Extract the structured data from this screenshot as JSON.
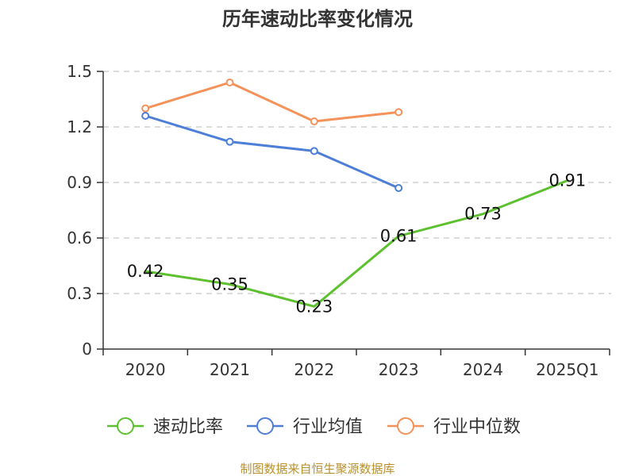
{
  "chart_data": {
    "type": "line",
    "title": "历年速动比率变化情况",
    "categories": [
      "2020",
      "2021",
      "2022",
      "2023",
      "2024",
      "2025Q1"
    ],
    "ylim": [
      0,
      1.5
    ],
    "yticks": [
      "0",
      "0.3",
      "0.6",
      "0.9",
      "1.2",
      "1.5"
    ],
    "grid": true,
    "legend_position": "bottom",
    "series": [
      {
        "name": "速动比率",
        "color": "#5dc02f",
        "values": [
          0.42,
          0.35,
          0.23,
          0.61,
          0.73,
          0.91
        ],
        "labels": [
          "0.42",
          "0.35",
          "0.23",
          "0.61",
          "0.73",
          "0.91"
        ],
        "show_labels": true,
        "markers": false
      },
      {
        "name": "行业均值",
        "color": "#4d7fd9",
        "values": [
          1.26,
          1.12,
          1.07,
          0.87,
          null,
          null
        ],
        "show_labels": false,
        "markers": true
      },
      {
        "name": "行业中位数",
        "color": "#f5925a",
        "values": [
          1.3,
          1.44,
          1.23,
          1.28,
          null,
          null
        ],
        "show_labels": false,
        "markers": true
      }
    ]
  },
  "footer": {
    "source": "制图数据来自恒生聚源数据库"
  }
}
